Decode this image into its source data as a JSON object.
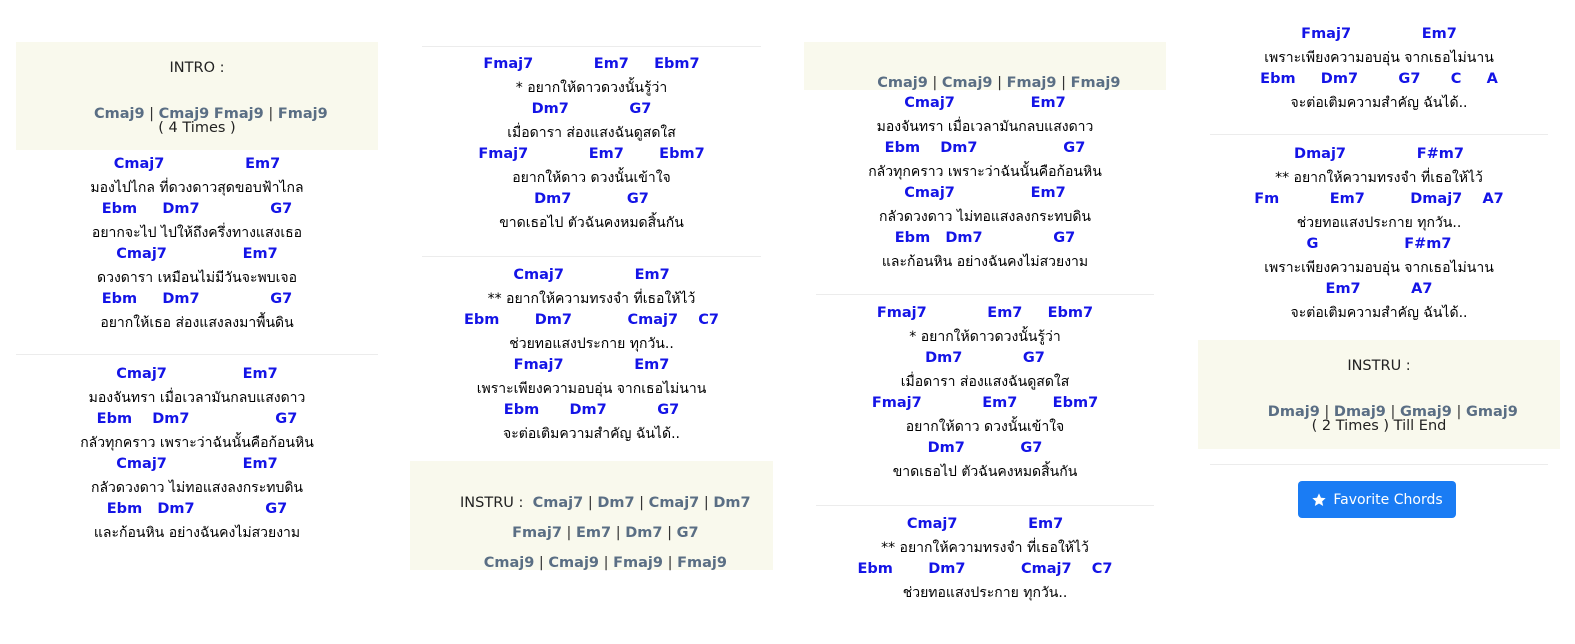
{
  "col1": {
    "intro": {
      "label": "INTRO :",
      "chords": [
        "Cmaj9",
        "Cmaj9",
        "Fmaj9",
        "Fmaj9"
      ],
      "times": "( 4 Times )"
    },
    "verse1": {
      "chords": [
        "Cmaj7                Em7",
        "Ebm     Dm7              G7",
        "Cmaj7               Em7",
        "Ebm     Dm7              G7"
      ],
      "lyrics": [
        "มองไปไกล ที่ดวงดาวสุดขอบฟ้าไกล",
        "อยากจะไป ไปให้ถึงครึ่งทางแสงเธอ",
        "ดวงดารา เหมือนไม่มีวันจะพบเจอ",
        "อยากให้เธอ ส่องแสงลงมาพื้นดิน"
      ]
    },
    "verse2": {
      "chords": [
        "Cmaj7               Em7",
        "Ebm    Dm7                 G7",
        "Cmaj7               Em7",
        "Ebm   Dm7              G7"
      ],
      "lyrics": [
        "มองจันทรา เมื่อเวลามันกลบแสงดาว",
        "กลัวทุกคราว เพราะว่าฉันนั้นคือก้อนหิน",
        "กลัวดวงดาว ไม่ทอแสงลงกระทบดิน",
        "และก้อนหิน อย่างฉันคงไม่สวยงาม"
      ]
    }
  },
  "col2": {
    "pre1": {
      "chords": [
        "Fmaj7            Em7     Ebm7",
        "Dm7            G7",
        "Fmaj7            Em7       Ebm7",
        "Dm7           G7"
      ],
      "lyrics": [
        "* อยากให้ดาวดวงนั้นรู้ว่า",
        "เมื่อดารา ส่องแสงฉันดูสดใส",
        "อยากให้ดาว ดวงนั้นเข้าใจ",
        "ขาดเธอไป ตัวฉันคงหมดสิ้นกัน"
      ]
    },
    "chorus1": {
      "chords": [
        "Cmaj7              Em7",
        "Ebm       Dm7           Cmaj7    C7",
        "Fmaj7              Em7",
        "Ebm      Dm7          G7"
      ],
      "lyrics": [
        "** อยากให้ความทรงจำ ที่เธอให้ไว้",
        "ช่วยทอแสงประกาย ทุกวัน..",
        "เพราะเพียงความอบอุ่น จากเธอไม่นาน",
        "จะต่อเติมความสำคัญ ฉันได้.."
      ]
    },
    "instru": {
      "label": "INSTRU :",
      "row1": [
        "Cmaj7",
        "Dm7",
        "Cmaj7",
        "Dm7"
      ],
      "row2": [
        "Fmaj7",
        "Em7",
        "Dm7",
        "G7"
      ],
      "row3": [
        "Cmaj9",
        "Cmaj9",
        "Fmaj9",
        "Fmaj9"
      ]
    }
  },
  "col3": {
    "intro": {
      "chords": [
        "Cmaj9",
        "Cmaj9",
        "Fmaj9",
        "Fmaj9"
      ]
    },
    "verse2": {
      "chords": [
        "Cmaj7               Em7",
        "Ebm    Dm7                 G7",
        "Cmaj7               Em7",
        "Ebm   Dm7              G7"
      ],
      "lyrics": [
        "มองจันทรา เมื่อเวลามันกลบแสงดาว",
        "กลัวทุกคราว เพราะว่าฉันนั้นคือก้อนหิน",
        "กลัวดวงดาว ไม่ทอแสงลงกระทบดิน",
        "และก้อนหิน อย่างฉันคงไม่สวยงาม"
      ]
    },
    "pre2": {
      "chords": [
        "Fmaj7            Em7     Ebm7",
        "Dm7            G7",
        "Fmaj7            Em7       Ebm7",
        "Dm7           G7"
      ],
      "lyrics": [
        "* อยากให้ดาวดวงนั้นรู้ว่า",
        "เมื่อดารา ส่องแสงฉันดูสดใส",
        "อยากให้ดาว ดวงนั้นเข้าใจ",
        "ขาดเธอไป ตัวฉันคงหมดสิ้นกัน"
      ]
    },
    "chorus2": {
      "chords": [
        "Cmaj7              Em7",
        "Ebm       Dm7           Cmaj7    C7"
      ],
      "lyrics": [
        "** อยากให้ความทรงจำ ที่เธอให้ไว้",
        "ช่วยทอแสงประกาย ทุกวัน.."
      ]
    }
  },
  "col4": {
    "chorus2_end": {
      "chords": [
        "Fmaj7              Em7",
        "Ebm     Dm7        G7      C     A"
      ],
      "lyrics": [
        "เพราะเพียงความอบอุ่น จากเธอไม่นาน",
        "จะต่อเติมความสำคัญ ฉันได้.."
      ]
    },
    "chorus3": {
      "chords": [
        "Dmaj7              F#m7",
        "Fm          Em7         Dmaj7    A7",
        "G                 F#m7",
        "Em7          A7"
      ],
      "lyrics": [
        "** อยากให้ความทรงจำ ที่เธอให้ไว้",
        "ช่วยทอแสงประกาย ทุกวัน..",
        "เพราะเพียงความอบอุ่น จากเธอไม่นาน",
        "จะต่อเติมความสำคัญ ฉันได้.."
      ]
    },
    "instru": {
      "label": "INSTRU :",
      "chords": [
        "Dmaj9",
        "Dmaj9",
        "Gmaj9",
        "Gmaj9"
      ],
      "times": "( 2 Times ) Till End"
    }
  },
  "favorite": {
    "label": "Favorite Chords",
    "icon": "star-icon"
  },
  "colors": {
    "chord": "#1414e6",
    "progression": "#5a6e84",
    "box": "#f9f9ed",
    "button": "#1a7cf4"
  }
}
